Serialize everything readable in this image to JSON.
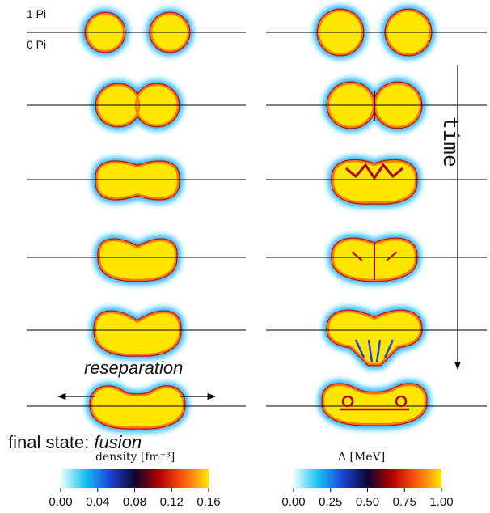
{
  "labels": {
    "pi_one": "1 Pi",
    "pi_zero": "0 Pi",
    "time": "time",
    "reseparation": "reseparation",
    "final_state_prefix": "final state:",
    "final_state_value": "fusion"
  },
  "colorbars": {
    "density": {
      "title": "density [fm⁻³]",
      "ticks": [
        "0.00",
        "0.04",
        "0.08",
        "0.12",
        "0.16"
      ],
      "stops": [
        "#e9ffff",
        "#19c0f0",
        "#1c44d8",
        "#0b0730",
        "#b40000",
        "#ff5a14",
        "#ffe600"
      ]
    },
    "delta": {
      "title": "Δ [MeV]",
      "ticks": [
        "0.00",
        "0.25",
        "0.50",
        "0.75",
        "1.00"
      ],
      "stops": [
        "#e9ffff",
        "#19c0f0",
        "#1c44d8",
        "#0b0730",
        "#b40000",
        "#ff5a14",
        "#ffe600"
      ]
    }
  },
  "colors": {
    "fill": "#ffe600",
    "rim_inner": "#ff7a00",
    "rim_mid": "#c01010",
    "halo": "#2aa8ff",
    "halo_outer": "#aef0ff",
    "line": "#000000"
  }
}
